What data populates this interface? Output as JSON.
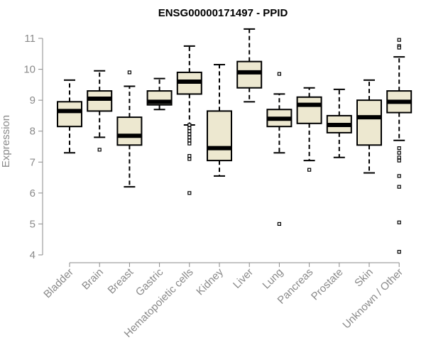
{
  "chart_data": {
    "type": "box",
    "title": "ENSG00000171497 - PPID",
    "xlabel": "",
    "ylabel": "Expression",
    "ylim": [
      4,
      11
    ],
    "yticks": [
      4,
      5,
      6,
      7,
      8,
      9,
      10,
      11
    ],
    "grid": false,
    "colors": {
      "box_fill": "#ede8d0",
      "stroke": "#000000",
      "axis": "#8a8a8a"
    },
    "categories": [
      "Bladder",
      "Brain",
      "Breast",
      "Gastric",
      "Hematopoietic cells",
      "Kidney",
      "Liver",
      "Lung",
      "Pancreas",
      "Prostate",
      "Skin",
      "Unknown / Other"
    ],
    "boxes": [
      {
        "whisker_low": 7.3,
        "q1": 8.15,
        "median": 8.65,
        "q3": 8.95,
        "whisker_high": 9.65,
        "outliers": []
      },
      {
        "whisker_low": 7.8,
        "q1": 8.65,
        "median": 9.05,
        "q3": 9.3,
        "whisker_high": 9.95,
        "outliers": [
          7.4
        ]
      },
      {
        "whisker_low": 6.2,
        "q1": 7.55,
        "median": 7.85,
        "q3": 8.45,
        "whisker_high": 9.45,
        "outliers": [
          9.9
        ]
      },
      {
        "whisker_low": 8.7,
        "q1": 8.85,
        "median": 8.95,
        "q3": 9.3,
        "whisker_high": 9.7,
        "outliers": []
      },
      {
        "whisker_low": 8.2,
        "q1": 9.2,
        "median": 9.6,
        "q3": 9.9,
        "whisker_high": 10.75,
        "outliers": [
          8.2,
          8.1,
          8.0,
          7.9,
          7.8,
          7.7,
          7.6,
          7.2,
          7.1,
          6.0
        ]
      },
      {
        "whisker_low": 6.55,
        "q1": 7.05,
        "median": 7.45,
        "q3": 8.65,
        "whisker_high": 10.15,
        "outliers": []
      },
      {
        "whisker_low": 8.95,
        "q1": 9.4,
        "median": 9.9,
        "q3": 10.25,
        "whisker_high": 11.3,
        "outliers": []
      },
      {
        "whisker_low": 7.3,
        "q1": 8.15,
        "median": 8.4,
        "q3": 8.7,
        "whisker_high": 9.2,
        "outliers": [
          9.85,
          5.0
        ]
      },
      {
        "whisker_low": 7.05,
        "q1": 8.25,
        "median": 8.85,
        "q3": 9.1,
        "whisker_high": 9.4,
        "outliers": [
          6.75
        ]
      },
      {
        "whisker_low": 7.15,
        "q1": 7.95,
        "median": 8.2,
        "q3": 8.5,
        "whisker_high": 9.35,
        "outliers": []
      },
      {
        "whisker_low": 6.65,
        "q1": 7.55,
        "median": 8.45,
        "q3": 9.0,
        "whisker_high": 9.65,
        "outliers": []
      },
      {
        "whisker_low": 7.7,
        "q1": 8.6,
        "median": 8.95,
        "q3": 9.3,
        "whisker_high": 10.4,
        "outliers": [
          10.95,
          10.75,
          10.7,
          7.45,
          7.3,
          7.15,
          7.05,
          6.55,
          6.2,
          5.05,
          4.1
        ]
      }
    ]
  }
}
